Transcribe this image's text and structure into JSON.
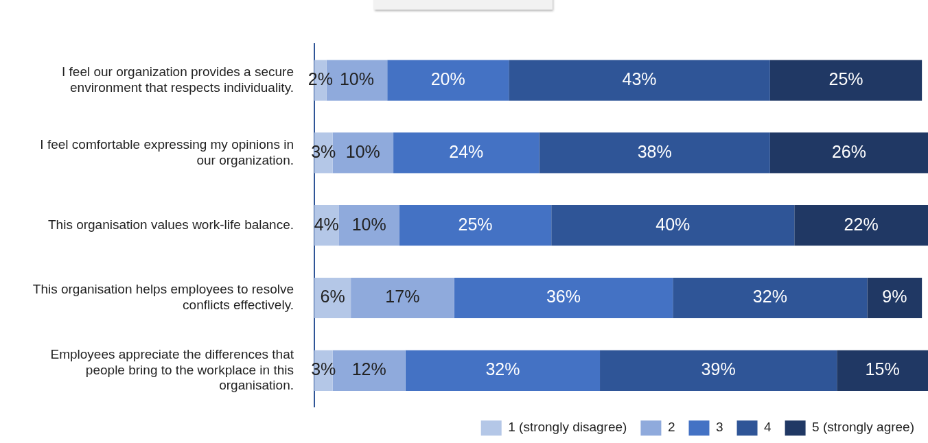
{
  "chart_data": {
    "type": "bar",
    "orientation": "horizontal",
    "stacked": true,
    "legend": "bottom",
    "tick_labels": "y",
    "categories": [
      "I feel our organization provides a secure environment that respects individuality.",
      "I feel comfortable expressing my opinions in our organization.",
      "This organisation values work-life balance.",
      "This organisation helps employees to resolve conflicts effectively.",
      "Employees appreciate the differences that people bring to the workplace in this organisation."
    ],
    "series": [
      {
        "name": "1 (strongly disagree)",
        "color": "#b4c7e7",
        "values": [
          2,
          3,
          4,
          6,
          3
        ],
        "value_labels": [
          "2%",
          "3%",
          "4%",
          "6%",
          "3%"
        ]
      },
      {
        "name": "2",
        "color": "#8faadc",
        "values": [
          10,
          10,
          10,
          17,
          12
        ],
        "value_labels": [
          "10%",
          "10%",
          "10%",
          "17%",
          "12%"
        ]
      },
      {
        "name": "3",
        "color": "#4472c4",
        "values": [
          20,
          24,
          25,
          36,
          32
        ],
        "value_labels": [
          "20%",
          "24%",
          "25%",
          "36%",
          "32%"
        ]
      },
      {
        "name": "4",
        "color": "#2f5597",
        "values": [
          43,
          38,
          40,
          32,
          39
        ],
        "value_labels": [
          "43%",
          "38%",
          "40%",
          "32%",
          "39%"
        ]
      },
      {
        "name": "5 (strongly agree)",
        "color": "#203864",
        "values": [
          25,
          26,
          22,
          9,
          15
        ],
        "value_labels": [
          "25%",
          "26%",
          "22%",
          "9%",
          "15%"
        ]
      }
    ]
  }
}
